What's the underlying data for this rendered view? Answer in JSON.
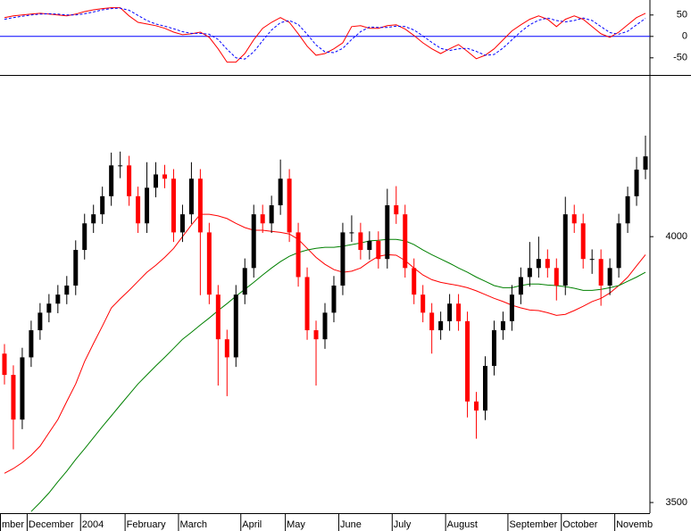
{
  "chart_data": [
    {
      "type": "line",
      "ylim": [
        -90,
        85
      ],
      "yticks": [
        50,
        0,
        -50
      ],
      "zero_line_color": "#0000ff",
      "series": [
        {
          "color": "#ff0000",
          "dash": false,
          "values": [
            44,
            48,
            50,
            52,
            54,
            52,
            50,
            48,
            52,
            58,
            62,
            65,
            67,
            67,
            48,
            33,
            29,
            25,
            19,
            10,
            4,
            6,
            10,
            -2,
            -29,
            -60,
            -60,
            -40,
            -8,
            19,
            33,
            44,
            33,
            6,
            -23,
            -44,
            -40,
            -29,
            -15,
            23,
            25,
            19,
            19,
            25,
            27,
            17,
            2,
            -15,
            -29,
            -40,
            -29,
            -19,
            -35,
            -52,
            -44,
            -29,
            -8,
            13,
            27,
            40,
            48,
            40,
            23,
            40,
            48,
            40,
            23,
            6,
            -2,
            10,
            27,
            44,
            54
          ]
        },
        {
          "color": "#0000ff",
          "dash": true,
          "values": [
            40,
            44,
            47,
            50,
            52,
            53,
            52,
            50,
            50,
            53,
            57,
            62,
            65,
            66,
            61,
            49,
            37,
            29,
            24,
            18,
            11,
            7,
            7,
            5,
            -7,
            -30,
            -50,
            -53,
            -36,
            -10,
            15,
            32,
            37,
            28,
            5,
            -20,
            -36,
            -38,
            -28,
            -7,
            11,
            22,
            21,
            21,
            24,
            23,
            15,
            1,
            -14,
            -28,
            -33,
            -29,
            -28,
            -35,
            -44,
            -42,
            -27,
            -8,
            11,
            27,
            38,
            43,
            37,
            34,
            37,
            43,
            37,
            23,
            9,
            5,
            12,
            27,
            42
          ]
        }
      ]
    },
    {
      "type": "candlestick",
      "ylim": [
        3480,
        4294
      ],
      "yticks": [
        4000,
        3500
      ],
      "up_color": "#000000",
      "down_color": "#ff0000",
      "categories": [
        "mber",
        null,
        null,
        "December",
        null,
        null,
        null,
        null,
        null,
        "2004",
        null,
        null,
        null,
        null,
        "February",
        null,
        null,
        null,
        null,
        null,
        "March",
        null,
        null,
        null,
        null,
        null,
        null,
        "April",
        null,
        null,
        null,
        null,
        "May",
        null,
        null,
        null,
        null,
        null,
        "June",
        null,
        null,
        null,
        null,
        null,
        "July",
        null,
        null,
        null,
        null,
        null,
        "August",
        null,
        null,
        null,
        null,
        null,
        null,
        "September",
        null,
        null,
        null,
        null,
        null,
        "October",
        null,
        null,
        null,
        null,
        null,
        "Novemb",
        null,
        null,
        null
      ],
      "open": [
        3780,
        3740,
        3656,
        3773,
        3824,
        3857,
        3874,
        3891,
        3908,
        3975,
        4025,
        4042,
        4076,
        4134,
        4134,
        4076,
        4025,
        4092,
        4117,
        4109,
        4008,
        4042,
        4109,
        4008,
        3891,
        3807,
        3773,
        3891,
        3941,
        4042,
        4025,
        4059,
        4109,
        4008,
        3924,
        3824,
        3807,
        3857,
        3908,
        4008,
        4008,
        3975,
        3992,
        3958,
        4059,
        4042,
        3941,
        3891,
        3857,
        3824,
        3841,
        3874,
        3841,
        3690,
        3673,
        3757,
        3824,
        3841,
        3891,
        3924,
        3941,
        3958,
        3941,
        3908,
        4042,
        4025,
        3958,
        3958,
        3908,
        3941,
        4025,
        4076,
        4126
      ],
      "high": [
        3798,
        3758,
        3791,
        3842,
        3875,
        3892,
        3909,
        3926,
        3993,
        4043,
        4060,
        4094,
        4158,
        4160,
        4152,
        4094,
        4140,
        4140,
        4135,
        4127,
        4060,
        4140,
        4127,
        4026,
        3909,
        3825,
        3909,
        3959,
        4060,
        4060,
        4077,
        4145,
        4127,
        4026,
        3942,
        3842,
        3875,
        3926,
        4026,
        4040,
        4026,
        4010,
        4010,
        4090,
        4095,
        4060,
        3959,
        3909,
        3875,
        3859,
        3892,
        3892,
        3859,
        3708,
        3775,
        3842,
        3859,
        3909,
        3942,
        3990,
        4000,
        3976,
        3959,
        4075,
        4060,
        4043,
        3976,
        3976,
        3959,
        4043,
        4094,
        4150,
        4190
      ],
      "low": [
        3722,
        3600,
        3638,
        3755,
        3806,
        3839,
        3856,
        3873,
        3890,
        3957,
        4007,
        4024,
        4058,
        4110,
        4058,
        4007,
        4007,
        4074,
        4091,
        3990,
        3990,
        4024,
        3890,
        3873,
        3720,
        3700,
        3755,
        3873,
        3923,
        4007,
        4007,
        4041,
        3990,
        3906,
        3806,
        3720,
        3789,
        3839,
        3890,
        3990,
        3957,
        3957,
        3940,
        3940,
        4024,
        3923,
        3873,
        3839,
        3780,
        3806,
        3823,
        3823,
        3660,
        3620,
        3655,
        3739,
        3806,
        3823,
        3873,
        3906,
        3923,
        3923,
        3880,
        3890,
        4007,
        3940,
        3930,
        3870,
        3890,
        3923,
        4007,
        4058,
        4108
      ],
      "close": [
        3740,
        3656,
        3773,
        3824,
        3857,
        3874,
        3891,
        3908,
        3975,
        4025,
        4042,
        4076,
        4134,
        4134,
        4076,
        4025,
        4092,
        4117,
        4109,
        4008,
        4042,
        4109,
        4008,
        3891,
        3807,
        3773,
        3891,
        3941,
        4042,
        4025,
        4059,
        4109,
        4008,
        3924,
        3824,
        3807,
        3857,
        3908,
        4008,
        4008,
        3975,
        3992,
        3958,
        4059,
        4042,
        3941,
        3891,
        3857,
        3824,
        3841,
        3874,
        3841,
        3690,
        3673,
        3757,
        3824,
        3841,
        3891,
        3924,
        3941,
        3958,
        3941,
        3908,
        4042,
        4025,
        3958,
        3958,
        3908,
        3941,
        4025,
        4076,
        4126,
        4151
      ],
      "series": [
        {
          "color": "#ff0000",
          "values": [
            3555,
            3564,
            3575,
            3589,
            3606,
            3631,
            3656,
            3690,
            3723,
            3765,
            3799,
            3832,
            3866,
            3883,
            3899,
            3916,
            3933,
            3946,
            3961,
            3978,
            4000,
            4022,
            4042,
            4042,
            4039,
            4034,
            4025,
            4017,
            4012,
            4012,
            4010,
            4008,
            4005,
            3995,
            3978,
            3961,
            3948,
            3938,
            3933,
            3935,
            3941,
            3953,
            3963,
            3966,
            3965,
            3955,
            3941,
            3928,
            3919,
            3914,
            3911,
            3908,
            3904,
            3898,
            3891,
            3884,
            3878,
            3871,
            3866,
            3862,
            3861,
            3857,
            3852,
            3854,
            3861,
            3869,
            3878,
            3884,
            3894,
            3908,
            3924,
            3945,
            3966
          ]
        },
        {
          "color": "#008000",
          "values": [
            null,
            null,
            null,
            3483,
            3500,
            3518,
            3539,
            3559,
            3581,
            3601,
            3622,
            3643,
            3663,
            3683,
            3703,
            3723,
            3740,
            3757,
            3773,
            3790,
            3807,
            3820,
            3834,
            3847,
            3861,
            3874,
            3888,
            3901,
            3914,
            3928,
            3941,
            3953,
            3963,
            3970,
            3975,
            3978,
            3980,
            3980,
            3982,
            3985,
            3988,
            3992,
            3993,
            3995,
            3995,
            3992,
            3985,
            3975,
            3966,
            3958,
            3950,
            3941,
            3933,
            3924,
            3916,
            3908,
            3904,
            3904,
            3908,
            3911,
            3911,
            3909,
            3908,
            3906,
            3903,
            3899,
            3899,
            3901,
            3904,
            3908,
            3916,
            3924,
            3933
          ]
        }
      ]
    }
  ]
}
